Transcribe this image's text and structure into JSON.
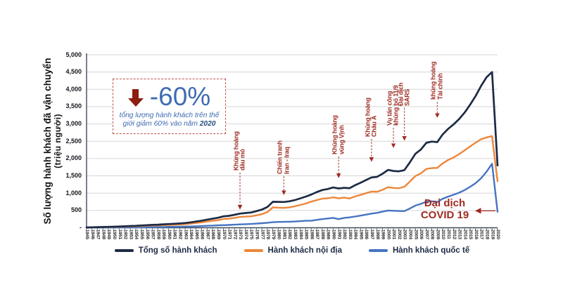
{
  "colors": {
    "navy": "#1c2b45",
    "orange": "#ed8639",
    "blue": "#4674c1",
    "annotation_red": "#9e2a21",
    "callout_border": "#c0504d",
    "callout_blue": "#3e6bb3",
    "callout_dark_blue": "#1f4e7a",
    "arrow_maroon": "#8e1d12",
    "gridline": "#d6d6d6",
    "axis": "#3f4a5a"
  },
  "y_axis": {
    "title": "Số lượng hành khách đã vận chuyển",
    "unit": "(triệu người)",
    "ticks": [
      {
        "value": 5000,
        "label": "5,000"
      },
      {
        "value": 4500,
        "label": "4,500"
      },
      {
        "value": 4000,
        "label": "4,000"
      },
      {
        "value": 3500,
        "label": "3,500"
      },
      {
        "value": 3000,
        "label": "3,000"
      },
      {
        "value": 2500,
        "label": "2,500"
      },
      {
        "value": 2000,
        "label": "2,000"
      },
      {
        "value": 1500,
        "label": "1,500"
      },
      {
        "value": 1000,
        "label": "1,000"
      },
      {
        "value": 500,
        "label": "500"
      },
      {
        "value": 0,
        "label": "-"
      }
    ]
  },
  "callout": {
    "percent": "-60%",
    "line1": "tổng lượng hành khách trên thế",
    "line2": "giới giảm 60% vào năm",
    "year": "2020"
  },
  "covid": {
    "line1": "Đại dịch",
    "line2": "COVID 19",
    "arrow_value": 490,
    "arrow_year": 2020
  },
  "annotations": [
    {
      "year": 1973,
      "lines": [
        "Khủng hoảng",
        "dầu mỏ"
      ],
      "tip_value": 540,
      "dash": 52
    },
    {
      "year": 1981,
      "lines": [
        "Chiến tranh",
        "Iran - Iraq"
      ],
      "tip_value": 960,
      "dash": 26
    },
    {
      "year": 1991,
      "lines": [
        "Khủng hoảng",
        "vùng Vịnh"
      ],
      "tip_value": 1450,
      "dash": 30
    },
    {
      "year": 1997,
      "lines": [
        "Khủng hoảng",
        "Châu Á"
      ],
      "tip_value": 1920,
      "dash": 32
    },
    {
      "year": 2001,
      "lines": [
        "Vụ tấn công",
        "khủng bố 11/9"
      ],
      "tip_value": 2320,
      "dash": 28
    },
    {
      "year": 2003,
      "lines": [
        "Đại dịch",
        "SARS"
      ],
      "tip_value": 2530,
      "dash": 46
    },
    {
      "year": 2009,
      "lines": [
        "khủng hoảng",
        "Tài chính"
      ],
      "tip_value": 3190,
      "dash": 22
    }
  ],
  "legend": {
    "items": [
      {
        "label": "Tổng số hành khách",
        "color": "#1c2b45"
      },
      {
        "label": "Hành khách nội địa",
        "color": "#ed8639"
      },
      {
        "label": "Hành khách quốc tế",
        "color": "#4674c1"
      }
    ]
  },
  "chart_data": {
    "type": "line",
    "title": "",
    "ylabel": "Số lượng hành khách đã vận chuyển (triệu người)",
    "ylim": [
      0,
      5000
    ],
    "grid": "horizontal",
    "legend_position": "bottom",
    "x": [
      1945,
      1946,
      1947,
      1948,
      1949,
      1950,
      1951,
      1952,
      1953,
      1954,
      1955,
      1956,
      1957,
      1958,
      1959,
      1960,
      1961,
      1962,
      1963,
      1964,
      1965,
      1966,
      1967,
      1968,
      1969,
      1970,
      1971,
      1972,
      1973,
      1974,
      1975,
      1976,
      1977,
      1978,
      1979,
      1980,
      1981,
      1982,
      1983,
      1984,
      1985,
      1986,
      1987,
      1988,
      1989,
      1990,
      1991,
      1992,
      1993,
      1994,
      1995,
      1996,
      1997,
      1998,
      1999,
      2000,
      2001,
      2002,
      2003,
      2004,
      2005,
      2006,
      2007,
      2008,
      2009,
      2010,
      2011,
      2012,
      2013,
      2014,
      2015,
      2016,
      2017,
      2018,
      2019,
      2020
    ],
    "series": [
      {
        "name": "Tổng số hành khách",
        "color": "#1c2b45",
        "values": [
          9,
          15,
          19,
          22,
          26,
          31,
          37,
          43,
          50,
          57,
          66,
          75,
          85,
          90,
          100,
          108,
          115,
          125,
          138,
          157,
          180,
          205,
          235,
          262,
          290,
          330,
          345,
          375,
          410,
          425,
          440,
          480,
          525,
          600,
          750,
          748,
          745,
          765,
          800,
          850,
          900,
          960,
          1030,
          1090,
          1120,
          1165,
          1135,
          1155,
          1145,
          1230,
          1300,
          1380,
          1455,
          1470,
          1560,
          1672,
          1640,
          1630,
          1665,
          1890,
          2135,
          2260,
          2455,
          2490,
          2475,
          2700,
          2860,
          2990,
          3145,
          3330,
          3560,
          3810,
          4100,
          4350,
          4500,
          1800
        ]
      },
      {
        "name": "Hành khách nội địa",
        "color": "#ed8639",
        "values": [
          7,
          11,
          14,
          16,
          19,
          23,
          28,
          33,
          38,
          44,
          51,
          58,
          66,
          69,
          77,
          82,
          87,
          94,
          104,
          119,
          137,
          156,
          179,
          200,
          220,
          255,
          264,
          286,
          312,
          322,
          330,
          360,
          394,
          455,
          590,
          580,
          574,
          590,
          619,
          660,
          700,
          755,
          800,
          840,
          852,
          878,
          850,
          870,
          845,
          905,
          950,
          1000,
          1045,
          1040,
          1095,
          1172,
          1150,
          1145,
          1185,
          1335,
          1495,
          1570,
          1700,
          1725,
          1730,
          1860,
          1960,
          2035,
          2130,
          2240,
          2350,
          2460,
          2560,
          2610,
          2650,
          1340
        ]
      },
      {
        "name": "Hành khách quốc tế",
        "color": "#4674c1",
        "values": [
          2,
          4,
          5,
          6,
          7,
          8,
          9,
          10,
          12,
          13,
          15,
          17,
          19,
          21,
          23,
          26,
          28,
          31,
          34,
          38,
          43,
          49,
          56,
          62,
          70,
          75,
          81,
          89,
          98,
          103,
          110,
          120,
          131,
          145,
          160,
          168,
          171,
          175,
          181,
          190,
          200,
          205,
          228,
          250,
          268,
          287,
          250,
          285,
          300,
          325,
          350,
          380,
          410,
          430,
          465,
          500,
          490,
          485,
          480,
          555,
          640,
          690,
          755,
          765,
          745,
          840,
          900,
          955,
          1015,
          1090,
          1185,
          1290,
          1430,
          1620,
          1850,
          460
        ]
      }
    ]
  }
}
